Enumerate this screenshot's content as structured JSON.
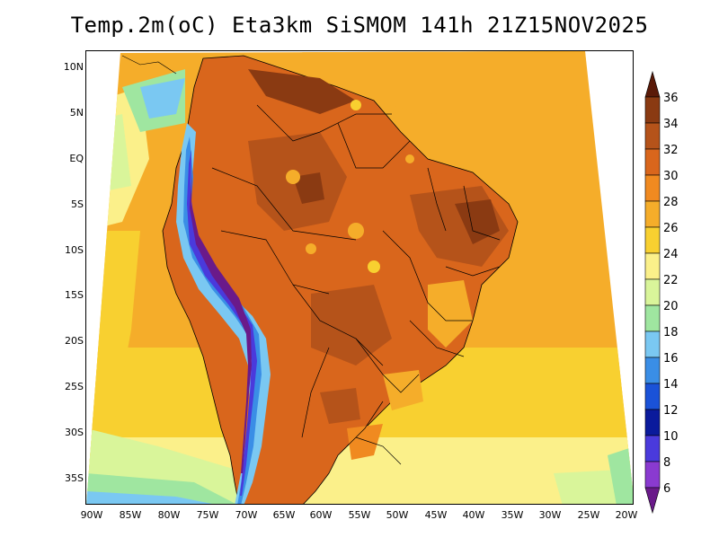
{
  "title": "Temp.2m(oC) Eta3km SiSMOM 141h 21Z15NOV2025",
  "map": {
    "lat_labels": [
      "10N",
      "5N",
      "EQ",
      "5S",
      "10S",
      "15S",
      "20S",
      "25S",
      "30S",
      "35S"
    ],
    "lon_labels": [
      "90W",
      "85W",
      "80W",
      "75W",
      "70W",
      "65W",
      "60W",
      "55W",
      "50W",
      "45W",
      "40W",
      "35W",
      "30W",
      "25W",
      "20W"
    ]
  },
  "colorbar": {
    "labels": [
      "36",
      "34",
      "32",
      "30",
      "28",
      "26",
      "24",
      "22",
      "20",
      "18",
      "16",
      "14",
      "12",
      "10",
      "8",
      "6"
    ],
    "colors": [
      "#5a1a08",
      "#8a3a12",
      "#b5531a",
      "#d9661c",
      "#f08a20",
      "#f5ad2a",
      "#f8d030",
      "#fbf08a",
      "#d9f59a",
      "#9fe6a0",
      "#7ac8f2",
      "#3a8ee6",
      "#1a52d8",
      "#0a1a9c",
      "#4a3adc",
      "#8a3ad0",
      "#6a1a8a"
    ],
    "units": "oC"
  },
  "colors": {
    "ocean_warm": "#f5ad2a",
    "ocean_mid": "#f8d030",
    "ocean_cool": "#d9f59a",
    "ocean_cold": "#7ac8f2",
    "land_hot": "#d9661c",
    "land_very_hot": "#b5531a",
    "land_extreme": "#8a3a12",
    "andes_cold": "#4a3adc"
  }
}
